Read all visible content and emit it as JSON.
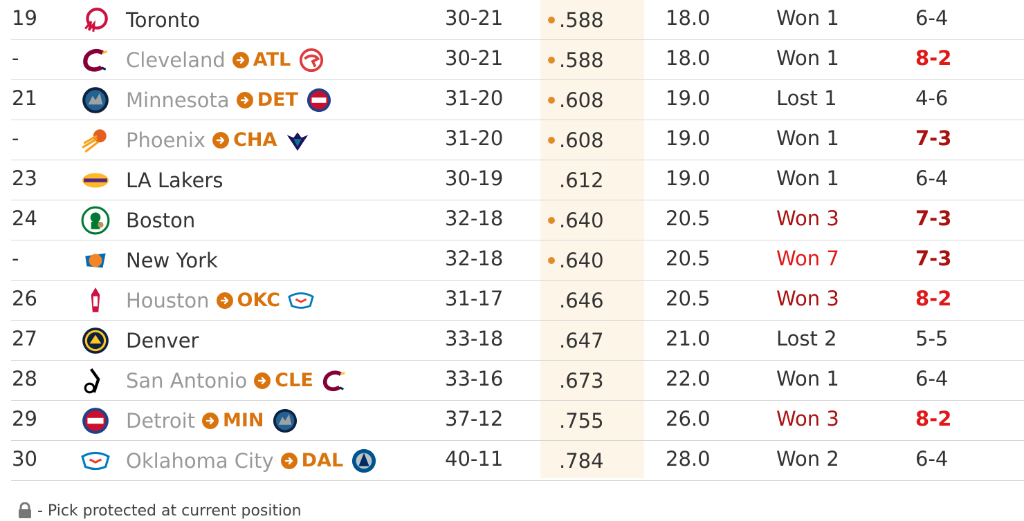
{
  "colors": {
    "traded_team": "#999999",
    "trade_accent": "#d9730d",
    "highlight_band": "#fdf5e8",
    "hot": "#e11818",
    "warm": "#aa1111"
  },
  "rows": [
    {
      "pick": "19",
      "team": "Toronto",
      "logo": "raptors-logo-icon",
      "traded": false,
      "record": "30-21",
      "dot": true,
      "pct": ".588",
      "gb": "18.0",
      "streak": "Won 1",
      "streak_style": "",
      "l10": "6-4",
      "l10_style": ""
    },
    {
      "pick": "-",
      "team": "Cleveland",
      "logo": "cavaliers-logo-icon",
      "traded": true,
      "to": "ATL",
      "to_logo": "hawks-logo-icon",
      "record": "30-21",
      "dot": true,
      "pct": ".588",
      "gb": "18.0",
      "streak": "Won 1",
      "streak_style": "",
      "l10": "8-2",
      "l10_style": "hot"
    },
    {
      "pick": "21",
      "team": "Minnesota",
      "logo": "timberwolves-logo-icon",
      "traded": true,
      "to": "DET",
      "to_logo": "pistons-logo-icon",
      "record": "31-20",
      "dot": true,
      "pct": ".608",
      "gb": "19.0",
      "streak": "Lost 1",
      "streak_style": "",
      "l10": "4-6",
      "l10_style": ""
    },
    {
      "pick": "-",
      "team": "Phoenix",
      "logo": "suns-logo-icon",
      "traded": true,
      "to": "CHA",
      "to_logo": "hornets-logo-icon",
      "record": "31-20",
      "dot": true,
      "pct": ".608",
      "gb": "19.0",
      "streak": "Won 1",
      "streak_style": "",
      "l10": "7-3",
      "l10_style": "warm"
    },
    {
      "pick": "23",
      "team": "LA Lakers",
      "logo": "lakers-logo-icon",
      "traded": false,
      "record": "30-19",
      "dot": false,
      "pct": ".612",
      "gb": "19.0",
      "streak": "Won 1",
      "streak_style": "",
      "l10": "6-4",
      "l10_style": ""
    },
    {
      "pick": "24",
      "team": "Boston",
      "logo": "celtics-logo-icon",
      "traded": false,
      "record": "32-18",
      "dot": true,
      "pct": ".640",
      "gb": "20.5",
      "streak": "Won 3",
      "streak_style": "warm",
      "l10": "7-3",
      "l10_style": "warm"
    },
    {
      "pick": "-",
      "team": "New York",
      "logo": "knicks-logo-icon",
      "traded": false,
      "record": "32-18",
      "dot": true,
      "pct": ".640",
      "gb": "20.5",
      "streak": "Won 7",
      "streak_style": "hot",
      "l10": "7-3",
      "l10_style": "warm"
    },
    {
      "pick": "26",
      "team": "Houston",
      "logo": "rockets-logo-icon",
      "traded": true,
      "to": "OKC",
      "to_logo": "thunder-logo-icon",
      "record": "31-17",
      "dot": false,
      "pct": ".646",
      "gb": "20.5",
      "streak": "Won 3",
      "streak_style": "warm",
      "l10": "8-2",
      "l10_style": "hot"
    },
    {
      "pick": "27",
      "team": "Denver",
      "logo": "nuggets-logo-icon",
      "traded": false,
      "record": "33-18",
      "dot": false,
      "pct": ".647",
      "gb": "21.0",
      "streak": "Lost 2",
      "streak_style": "",
      "l10": "5-5",
      "l10_style": ""
    },
    {
      "pick": "28",
      "team": "San Antonio",
      "logo": "spurs-logo-icon",
      "traded": true,
      "to": "CLE",
      "to_logo": "cavaliers-logo-icon",
      "record": "33-16",
      "dot": false,
      "pct": ".673",
      "gb": "22.0",
      "streak": "Won 1",
      "streak_style": "",
      "l10": "6-4",
      "l10_style": ""
    },
    {
      "pick": "29",
      "team": "Detroit",
      "logo": "pistons-logo-icon",
      "traded": true,
      "to": "MIN",
      "to_logo": "timberwolves-logo-icon",
      "record": "37-12",
      "dot": false,
      "pct": ".755",
      "gb": "26.0",
      "streak": "Won 3",
      "streak_style": "warm",
      "l10": "8-2",
      "l10_style": "hot"
    },
    {
      "pick": "30",
      "team": "Oklahoma City",
      "logo": "thunder-logo-icon",
      "traded": true,
      "to": "DAL",
      "to_logo": "mavericks-logo-icon",
      "record": "40-11",
      "dot": false,
      "pct": ".784",
      "gb": "28.0",
      "streak": "Won 2",
      "streak_style": "",
      "l10": "6-4",
      "l10_style": ""
    }
  ],
  "footnote": {
    "icon": "lock-icon",
    "text": "- Pick protected at current position"
  }
}
